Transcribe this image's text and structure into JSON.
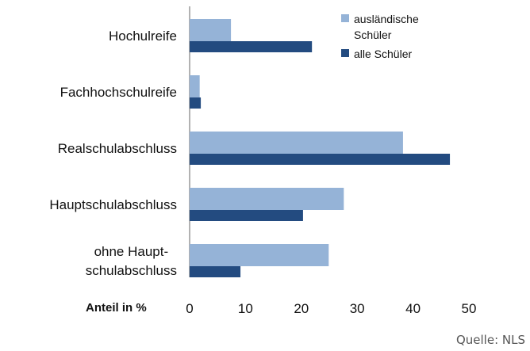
{
  "chart_data": {
    "type": "barh",
    "categories": [
      "Hochulreife",
      "Fachhochschulreife",
      "Realschulabschluss",
      "Hauptschulabschluss",
      "ohne Haupt-\nschulabschluss"
    ],
    "series": [
      {
        "name": "ausländische Schüler",
        "color": "#95b3d7",
        "values": [
          7.4,
          1.8,
          38.2,
          27.6,
          24.9
        ]
      },
      {
        "name": "alle Schüler",
        "color": "#234b80",
        "values": [
          21.9,
          2.0,
          46.6,
          20.3,
          9.1
        ]
      }
    ],
    "xlabel": "Anteil in %",
    "xlim": [
      0,
      50
    ],
    "xticks": [
      0,
      10,
      20,
      30,
      40,
      50
    ],
    "source": "Quelle: NLS",
    "legend": "upper right"
  }
}
